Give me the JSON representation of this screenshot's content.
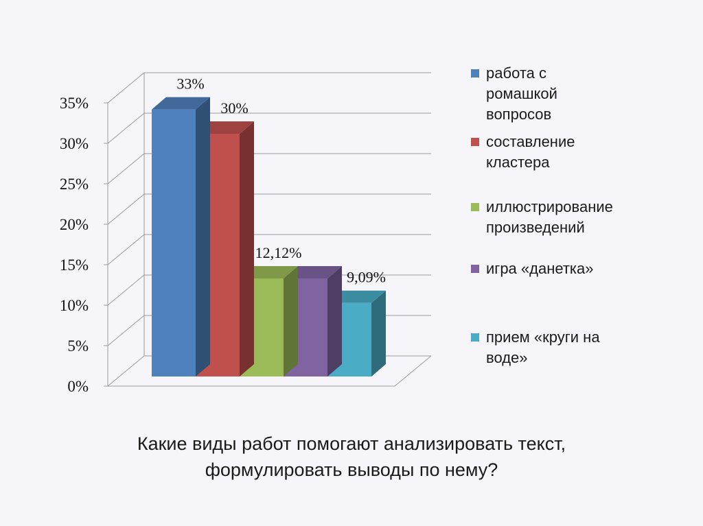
{
  "chart_data": {
    "type": "bar",
    "title": "",
    "xlabel": "",
    "ylabel": "",
    "ylim": [
      0,
      35
    ],
    "yticks": [
      "0%",
      "5%",
      "10%",
      "15%",
      "20%",
      "25%",
      "30%",
      "35%"
    ],
    "grid": true,
    "legend_position": "right",
    "categories": [
      "работа с\nромашкой\nвопросов",
      "составление\nкластера",
      "иллюстрирование\nпроизведений",
      "игра «данетка»",
      "прием  «круги на\nводе»"
    ],
    "values": [
      33,
      30,
      12.12,
      12.12,
      9.09
    ],
    "data_labels": [
      "33%",
      "30%",
      "12,12%",
      "",
      "9,09%"
    ],
    "colors": [
      "#4f81bd",
      "#c0504d",
      "#9bbb59",
      "#8064a2",
      "#4bacc6"
    ]
  },
  "caption": {
    "line1": "Какие виды работ помогают анализировать текст,",
    "line2": "формулировать выводы по нему?"
  }
}
